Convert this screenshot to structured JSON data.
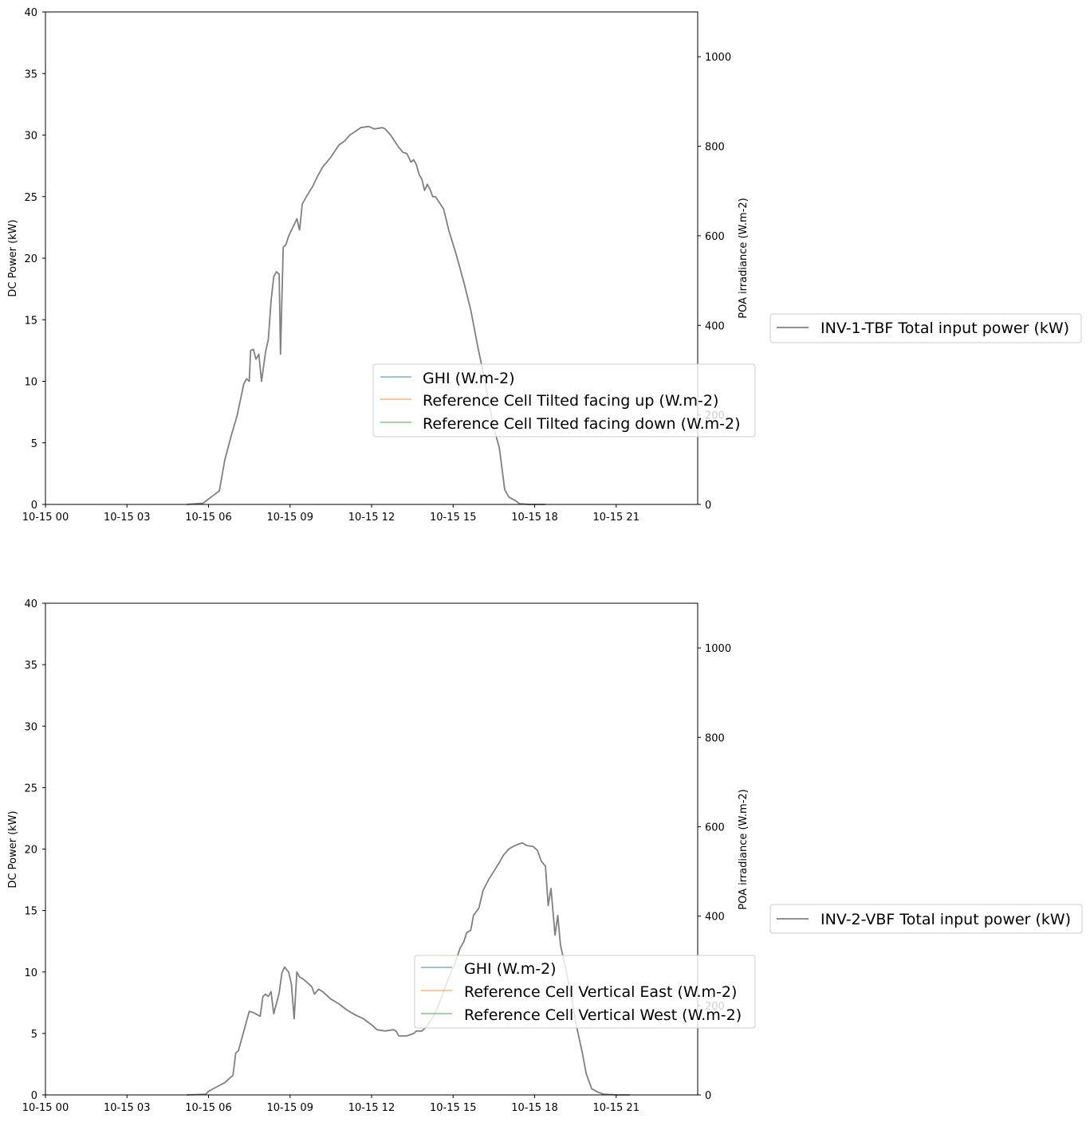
{
  "chart_data": [
    {
      "type": "line",
      "title": "",
      "xlabel": "",
      "ylabel": "DC Power (kW)",
      "ylabel_right": "POA irradiance (W.m-2)",
      "xlim_hours": [
        0,
        24
      ],
      "ylim": [
        0,
        40
      ],
      "ylim_right": [
        0,
        1100
      ],
      "x_tick_labels": [
        "10-15 00",
        "10-15 03",
        "10-15 06",
        "10-15 09",
        "10-15 12",
        "10-15 15",
        "10-15 18",
        "10-15 21"
      ],
      "y_ticks": [
        0,
        5,
        10,
        15,
        20,
        25,
        30,
        35,
        40
      ],
      "y_ticks_right": [
        0,
        200,
        400,
        600,
        800,
        1000
      ],
      "legend_main": [
        "GHI (W.m-2)",
        "Reference Cell Tilted facing up (W.m-2)",
        "Reference Cell Tilted facing down (W.m-2)"
      ],
      "legend_main_colors": [
        "#1f77b4",
        "#ff7f0e",
        "#2ca02c"
      ],
      "legend_main_position": "center-right",
      "legend_outside": "INV-1-TBF Total input power (kW)",
      "series": [
        {
          "name": "INV-1-TBF Total input power (kW)",
          "color": "#808080",
          "points": [
            [
              5.2,
              0
            ],
            [
              5.8,
              0.1
            ],
            [
              6.1,
              0.6
            ],
            [
              6.4,
              1.1
            ],
            [
              6.6,
              3.6
            ],
            [
              6.85,
              5.7
            ],
            [
              7.05,
              7.2
            ],
            [
              7.3,
              9.8
            ],
            [
              7.4,
              10.2
            ],
            [
              7.5,
              10.0
            ],
            [
              7.55,
              12.5
            ],
            [
              7.65,
              12.6
            ],
            [
              7.75,
              11.8
            ],
            [
              7.85,
              12.2
            ],
            [
              7.95,
              10.0
            ],
            [
              8.1,
              12.4
            ],
            [
              8.2,
              13.4
            ],
            [
              8.3,
              16.5
            ],
            [
              8.4,
              18.5
            ],
            [
              8.5,
              18.9
            ],
            [
              8.6,
              18.7
            ],
            [
              8.65,
              12.2
            ],
            [
              8.75,
              20.9
            ],
            [
              8.85,
              21.1
            ],
            [
              8.95,
              21.8
            ],
            [
              9.1,
              22.5
            ],
            [
              9.25,
              23.2
            ],
            [
              9.35,
              22.3
            ],
            [
              9.45,
              24.4
            ],
            [
              9.6,
              25.0
            ],
            [
              9.85,
              25.9
            ],
            [
              10.0,
              26.6
            ],
            [
              10.2,
              27.4
            ],
            [
              10.5,
              28.2
            ],
            [
              10.8,
              29.2
            ],
            [
              11.0,
              29.5
            ],
            [
              11.2,
              30.0
            ],
            [
              11.4,
              30.3
            ],
            [
              11.6,
              30.6
            ],
            [
              11.9,
              30.7
            ],
            [
              12.1,
              30.5
            ],
            [
              12.4,
              30.6
            ],
            [
              12.5,
              30.5
            ],
            [
              12.7,
              30.0
            ],
            [
              12.85,
              29.5
            ],
            [
              13.0,
              29.0
            ],
            [
              13.15,
              28.6
            ],
            [
              13.3,
              28.5
            ],
            [
              13.45,
              27.8
            ],
            [
              13.55,
              28.0
            ],
            [
              13.65,
              27.6
            ],
            [
              13.75,
              26.8
            ],
            [
              13.85,
              26.4
            ],
            [
              13.95,
              25.5
            ],
            [
              14.05,
              26.0
            ],
            [
              14.15,
              25.6
            ],
            [
              14.25,
              25.0
            ],
            [
              14.35,
              25.0
            ],
            [
              14.5,
              24.5
            ],
            [
              14.65,
              24.0
            ],
            [
              14.85,
              22.2
            ],
            [
              15.1,
              20.4
            ],
            [
              15.4,
              18.0
            ],
            [
              15.65,
              15.8
            ],
            [
              15.9,
              12.9
            ],
            [
              16.1,
              10.8
            ],
            [
              16.3,
              8.5
            ],
            [
              16.5,
              6.2
            ],
            [
              16.7,
              4.6
            ],
            [
              16.9,
              1.2
            ],
            [
              17.05,
              0.6
            ],
            [
              17.3,
              0.3
            ],
            [
              17.45,
              0.05
            ],
            [
              17.8,
              0
            ],
            [
              18.4,
              0
            ]
          ]
        }
      ]
    },
    {
      "type": "line",
      "title": "",
      "xlabel": "",
      "ylabel": "DC Power (kW)",
      "ylabel_right": "POA irradiance (W.m-2)",
      "xlim_hours": [
        0,
        24
      ],
      "ylim": [
        0,
        40
      ],
      "ylim_right": [
        0,
        1100
      ],
      "x_tick_labels": [
        "10-15 00",
        "10-15 03",
        "10-15 06",
        "10-15 09",
        "10-15 12",
        "10-15 15",
        "10-15 18",
        "10-15 21"
      ],
      "y_ticks": [
        0,
        5,
        10,
        15,
        20,
        25,
        30,
        35,
        40
      ],
      "y_ticks_right": [
        0,
        200,
        400,
        600,
        800,
        1000
      ],
      "legend_main": [
        "GHI (W.m-2)",
        "Reference Cell Vertical East (W.m-2)",
        "Reference Cell Vertical West (W.m-2)"
      ],
      "legend_main_colors": [
        "#1f77b4",
        "#ff7f0e",
        "#2ca02c"
      ],
      "legend_main_position": "center-right",
      "legend_outside": "INV-2-VBF Total input power (kW)",
      "series": [
        {
          "name": "INV-2-VBF Total input power (kW)",
          "color": "#808080",
          "points": [
            [
              5.2,
              0
            ],
            [
              5.9,
              0.05
            ],
            [
              6.0,
              0.3
            ],
            [
              6.3,
              0.65
            ],
            [
              6.6,
              1.0
            ],
            [
              6.9,
              1.6
            ],
            [
              7.0,
              3.4
            ],
            [
              7.1,
              3.6
            ],
            [
              7.25,
              4.8
            ],
            [
              7.5,
              6.8
            ],
            [
              7.65,
              6.7
            ],
            [
              7.9,
              6.4
            ],
            [
              8.0,
              8.0
            ],
            [
              8.1,
              8.2
            ],
            [
              8.2,
              8.0
            ],
            [
              8.3,
              8.4
            ],
            [
              8.4,
              6.6
            ],
            [
              8.6,
              8.3
            ],
            [
              8.7,
              9.9
            ],
            [
              8.8,
              10.4
            ],
            [
              8.95,
              10.0
            ],
            [
              9.05,
              9.0
            ],
            [
              9.15,
              6.2
            ],
            [
              9.25,
              10.0
            ],
            [
              9.35,
              9.6
            ],
            [
              9.5,
              9.4
            ],
            [
              9.65,
              9.1
            ],
            [
              9.8,
              8.8
            ],
            [
              9.9,
              8.2
            ],
            [
              10.05,
              8.6
            ],
            [
              10.2,
              8.4
            ],
            [
              10.5,
              7.8
            ],
            [
              10.8,
              7.4
            ],
            [
              11.1,
              6.9
            ],
            [
              11.4,
              6.5
            ],
            [
              11.7,
              6.2
            ],
            [
              12.0,
              5.7
            ],
            [
              12.2,
              5.3
            ],
            [
              12.5,
              5.2
            ],
            [
              12.8,
              5.3
            ],
            [
              12.9,
              5.2
            ],
            [
              13.0,
              4.8
            ],
            [
              13.3,
              4.8
            ],
            [
              13.55,
              5.0
            ],
            [
              13.65,
              5.2
            ],
            [
              13.85,
              5.2
            ],
            [
              14.0,
              5.5
            ],
            [
              14.3,
              6.5
            ],
            [
              14.55,
              7.8
            ],
            [
              14.8,
              9.3
            ],
            [
              15.05,
              10.6
            ],
            [
              15.25,
              11.9
            ],
            [
              15.4,
              12.5
            ],
            [
              15.5,
              13.2
            ],
            [
              15.65,
              13.4
            ],
            [
              15.75,
              14.6
            ],
            [
              15.95,
              15.2
            ],
            [
              16.1,
              16.6
            ],
            [
              16.3,
              17.5
            ],
            [
              16.5,
              18.2
            ],
            [
              16.7,
              18.9
            ],
            [
              16.85,
              19.5
            ],
            [
              17.05,
              20.0
            ],
            [
              17.2,
              20.2
            ],
            [
              17.4,
              20.4
            ],
            [
              17.55,
              20.5
            ],
            [
              17.7,
              20.3
            ],
            [
              17.95,
              20.2
            ],
            [
              18.1,
              19.9
            ],
            [
              18.25,
              19.0
            ],
            [
              18.4,
              18.6
            ],
            [
              18.5,
              15.4
            ],
            [
              18.6,
              16.8
            ],
            [
              18.75,
              13.0
            ],
            [
              18.85,
              14.6
            ],
            [
              18.95,
              12.2
            ],
            [
              19.15,
              10.2
            ],
            [
              19.35,
              8.0
            ],
            [
              19.55,
              5.5
            ],
            [
              19.75,
              3.5
            ],
            [
              19.9,
              1.7
            ],
            [
              20.1,
              0.5
            ],
            [
              20.35,
              0.2
            ],
            [
              20.55,
              0.05
            ],
            [
              21.0,
              0
            ],
            [
              21.5,
              0
            ]
          ]
        }
      ]
    }
  ]
}
